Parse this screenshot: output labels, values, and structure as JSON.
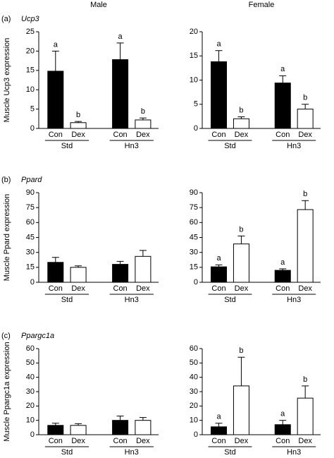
{
  "column_headers": [
    "Male",
    "Female"
  ],
  "chart_data": [
    {
      "type": "bar",
      "panel_label": "(a)",
      "title": "Ucp3",
      "ylabel": "Muscle Ucp3 expression",
      "categories": [
        "Std",
        "Hn3"
      ],
      "series": [
        {
          "name": "Con",
          "color": "#000000",
          "values": [
            14.8,
            17.8
          ],
          "errors": [
            5.2,
            4.3
          ],
          "annotations": [
            "a",
            "a"
          ]
        },
        {
          "name": "Dex",
          "color": "#ffffff",
          "values": [
            1.5,
            2.2
          ],
          "errors": [
            0.3,
            0.5
          ],
          "annotations": [
            "b",
            "b"
          ]
        }
      ],
      "ylim": [
        0,
        25
      ],
      "yticks": [
        0,
        5,
        10,
        15,
        20,
        25
      ]
    },
    {
      "type": "bar",
      "categories": [
        "Std",
        "Hn3"
      ],
      "series": [
        {
          "name": "Con",
          "color": "#000000",
          "values": [
            13.8,
            9.4
          ],
          "errors": [
            2.3,
            1.5
          ],
          "annotations": [
            "a",
            "a"
          ]
        },
        {
          "name": "Dex",
          "color": "#ffffff",
          "values": [
            2.0,
            4.0
          ],
          "errors": [
            0.4,
            1.0
          ],
          "annotations": [
            "b",
            "b"
          ]
        }
      ],
      "ylim": [
        0,
        20
      ],
      "yticks": [
        0,
        5,
        10,
        15,
        20
      ]
    },
    {
      "type": "bar",
      "panel_label": "(b)",
      "title": "Ppard",
      "ylabel": "Muscle Ppard expression",
      "categories": [
        "Std",
        "Hn3"
      ],
      "series": [
        {
          "name": "Con",
          "color": "#000000",
          "values": [
            20,
            18
          ],
          "errors": [
            5,
            3
          ]
        },
        {
          "name": "Dex",
          "color": "#ffffff",
          "values": [
            15,
            26
          ],
          "errors": [
            1.5,
            6
          ]
        }
      ],
      "ylim": [
        0,
        90
      ],
      "yticks": [
        0,
        15,
        30,
        45,
        60,
        75,
        90
      ]
    },
    {
      "type": "bar",
      "categories": [
        "Std",
        "Hn3"
      ],
      "series": [
        {
          "name": "Con",
          "color": "#000000",
          "values": [
            15.5,
            12
          ],
          "errors": [
            2,
            1.5
          ],
          "annotations": [
            "a",
            "a"
          ]
        },
        {
          "name": "Dex",
          "color": "#ffffff",
          "values": [
            38.5,
            73
          ],
          "errors": [
            8,
            9
          ],
          "annotations": [
            "b",
            "b"
          ]
        }
      ],
      "ylim": [
        0,
        90
      ],
      "yticks": [
        0,
        15,
        30,
        45,
        60,
        75,
        90
      ]
    },
    {
      "type": "bar",
      "panel_label": "(c)",
      "title": "Ppargc1a",
      "ylabel": "Muscle Ppargc1a expression",
      "categories": [
        "Std",
        "Hn3"
      ],
      "series": [
        {
          "name": "Con",
          "color": "#000000",
          "values": [
            6.5,
            10
          ],
          "errors": [
            1.5,
            3
          ]
        },
        {
          "name": "Dex",
          "color": "#ffffff",
          "values": [
            6.5,
            10
          ],
          "errors": [
            1.2,
            2
          ]
        }
      ],
      "ylim": [
        0,
        60
      ],
      "yticks": [
        0,
        10,
        20,
        30,
        40,
        50,
        60
      ]
    },
    {
      "type": "bar",
      "categories": [
        "Std",
        "Hn3"
      ],
      "series": [
        {
          "name": "Con",
          "color": "#000000",
          "values": [
            5.5,
            7
          ],
          "errors": [
            2.5,
            3
          ],
          "annotations": [
            "a",
            "a"
          ]
        },
        {
          "name": "Dex",
          "color": "#ffffff",
          "values": [
            34,
            25.5
          ],
          "errors": [
            20,
            8.5
          ],
          "annotations": [
            "b",
            "b"
          ]
        }
      ],
      "ylim": [
        0,
        60
      ],
      "yticks": [
        0,
        10,
        20,
        30,
        40,
        50,
        60
      ]
    }
  ]
}
